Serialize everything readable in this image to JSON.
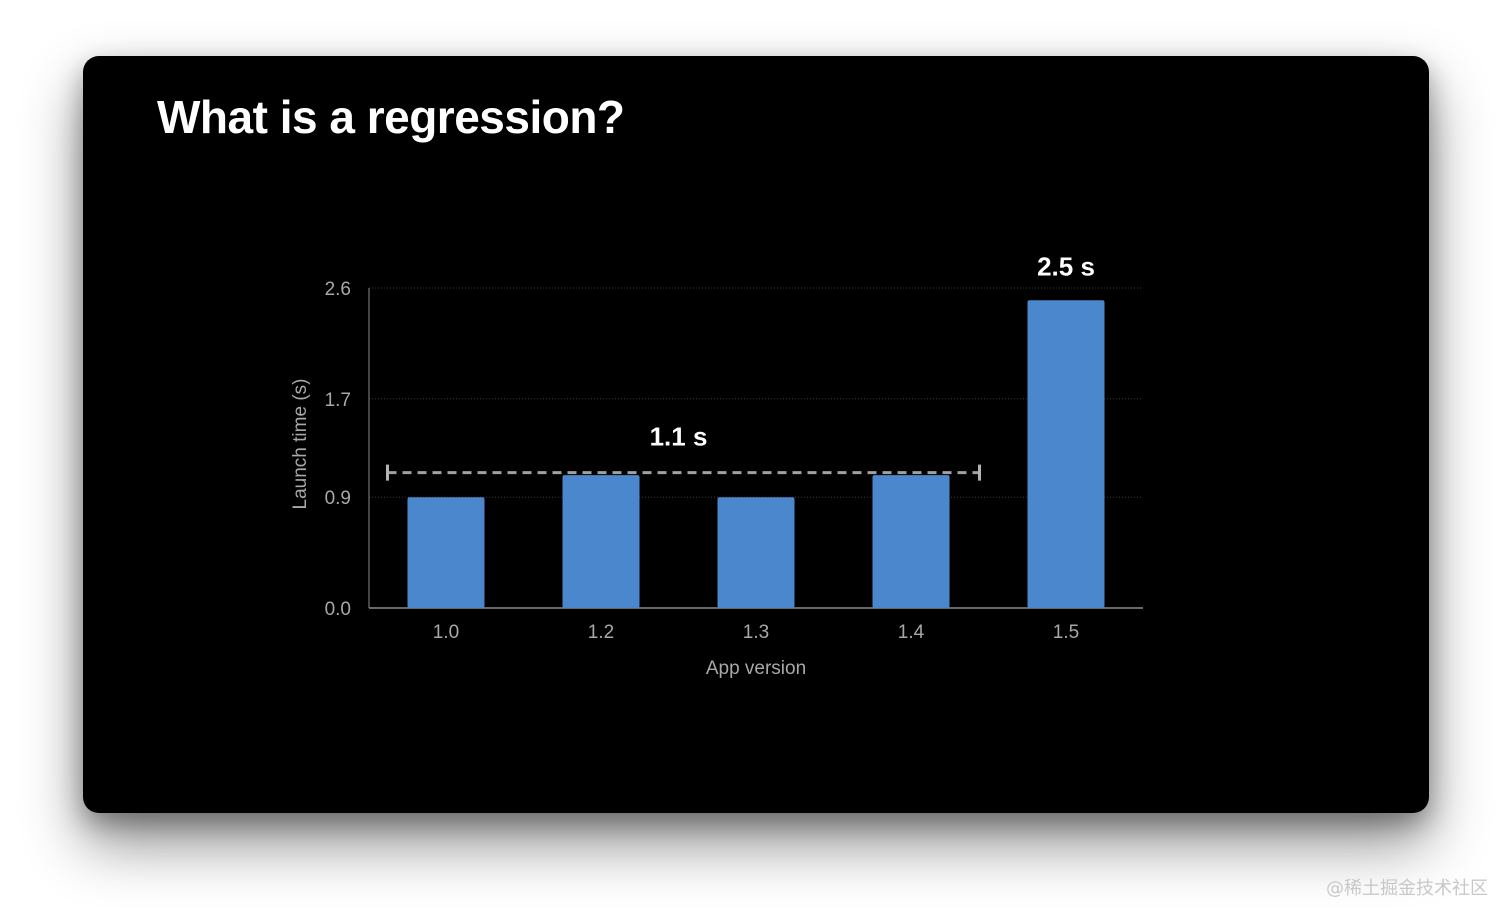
{
  "slide": {
    "title": "What is a regression?"
  },
  "watermark": "@稀土掘金技术社区",
  "colors": {
    "background": "#000000",
    "bar": "#4a87cc",
    "axis_text": "#a8a8a8",
    "annotation_text": "#ffffff",
    "mean_line": "#b3b3b3",
    "grid": "#3a3a3a"
  },
  "chart_data": {
    "type": "bar",
    "categories": [
      "1.0",
      "1.2",
      "1.3",
      "1.4",
      "1.5"
    ],
    "values": [
      0.9,
      1.08,
      0.9,
      1.08,
      2.5
    ],
    "xlabel": "App version",
    "ylabel": "Launch time (s)",
    "y_ticks": [
      "0.0",
      "0.9",
      "1.7",
      "2.6"
    ],
    "ylim": [
      0,
      2.6
    ],
    "grid": true,
    "annotations": [
      {
        "text": "1.1 s",
        "kind": "mean-line",
        "value": 1.1,
        "spans": [
          "1.0",
          "1.4"
        ]
      },
      {
        "text": "2.5 s",
        "kind": "bar-label",
        "category": "1.5"
      }
    ]
  }
}
